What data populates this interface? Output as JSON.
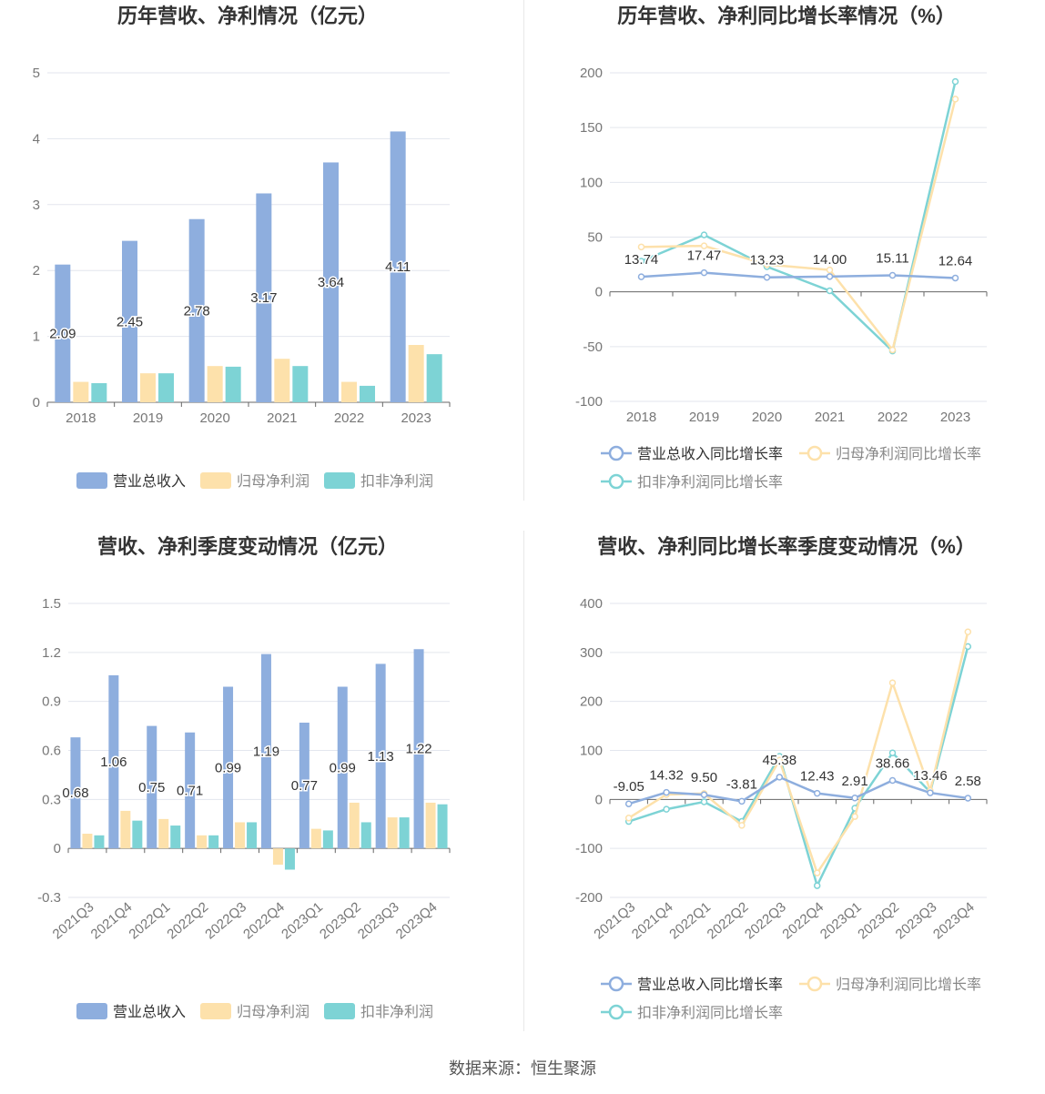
{
  "footer": "数据来源：恒生聚源",
  "colors": {
    "revenue": "#8eaede",
    "parent_profit": "#fde1ab",
    "deducted_profit": "#7dd3d5"
  },
  "chart_data": [
    {
      "type": "bar",
      "title": "历年营收、净利情况（亿元）",
      "categories": [
        "2018",
        "2019",
        "2020",
        "2021",
        "2022",
        "2023"
      ],
      "ylim": [
        0,
        5
      ],
      "yticks": [
        "0",
        "1",
        "2",
        "3",
        "4",
        "5"
      ],
      "yticks_values": [
        0,
        1,
        2,
        3,
        4,
        5
      ],
      "legend": "bottom",
      "series": [
        {
          "name": "营业总收入",
          "values": [
            2.09,
            2.45,
            2.78,
            3.17,
            3.64,
            4.11
          ],
          "labels": [
            "2.09",
            "2.45",
            "2.78",
            "3.17",
            "3.64",
            "4.11"
          ]
        },
        {
          "name": "归母净利润",
          "values": [
            0.31,
            0.44,
            0.55,
            0.66,
            0.31,
            0.87
          ]
        },
        {
          "name": "扣非净利润",
          "values": [
            0.29,
            0.44,
            0.54,
            0.55,
            0.25,
            0.73
          ]
        }
      ]
    },
    {
      "type": "line",
      "title": "历年营收、净利同比增长率情况（%）",
      "categories": [
        "2018",
        "2019",
        "2020",
        "2021",
        "2022",
        "2023"
      ],
      "ylim": [
        -100,
        200
      ],
      "yticks": [
        "-100",
        "-50",
        "0",
        "50",
        "100",
        "150",
        "200"
      ],
      "yticks_values": [
        -100,
        -50,
        0,
        50,
        100,
        150,
        200
      ],
      "legend": "bottom",
      "series": [
        {
          "name": "营业总收入同比增长率",
          "values": [
            13.74,
            17.47,
            13.23,
            14.0,
            15.11,
            12.64
          ],
          "labels": [
            "13.74",
            "17.47",
            "13.23",
            "14.00",
            "15.11",
            "12.64"
          ]
        },
        {
          "name": "归母净利润同比增长率",
          "values": [
            41,
            42,
            25,
            20,
            -53,
            176
          ]
        },
        {
          "name": "扣非净利润同比增长率",
          "values": [
            28,
            52,
            23,
            1,
            -54,
            192
          ]
        }
      ]
    },
    {
      "type": "bar",
      "title": "营收、净利季度变动情况（亿元）",
      "categories": [
        "2021Q3",
        "2021Q4",
        "2022Q1",
        "2022Q2",
        "2022Q3",
        "2022Q4",
        "2023Q1",
        "2023Q2",
        "2023Q3",
        "2023Q4"
      ],
      "ylim": [
        -0.3,
        1.5
      ],
      "yticks": [
        "-0.3",
        "0",
        "0.3",
        "0.6",
        "0.9",
        "1.2",
        "1.5"
      ],
      "yticks_values": [
        -0.3,
        0,
        0.3,
        0.6,
        0.9,
        1.2,
        1.5
      ],
      "legend": "bottom",
      "series": [
        {
          "name": "营业总收入",
          "values": [
            0.68,
            1.06,
            0.75,
            0.71,
            0.99,
            1.19,
            0.77,
            0.99,
            1.13,
            1.22
          ],
          "labels": [
            "0.68",
            "1.06",
            "0.75",
            "0.71",
            "0.99",
            "1.19",
            "0.77",
            "0.99",
            "1.13",
            "1.22"
          ]
        },
        {
          "name": "归母净利润",
          "values": [
            0.09,
            0.23,
            0.18,
            0.08,
            0.16,
            -0.1,
            0.12,
            0.28,
            0.19,
            0.28
          ]
        },
        {
          "name": "扣非净利润",
          "values": [
            0.08,
            0.17,
            0.14,
            0.08,
            0.16,
            -0.13,
            0.11,
            0.16,
            0.19,
            0.27
          ]
        }
      ]
    },
    {
      "type": "line",
      "title": "营收、净利同比增长率季度变动情况（%）",
      "categories": [
        "2021Q3",
        "2021Q4",
        "2022Q1",
        "2022Q2",
        "2022Q3",
        "2022Q4",
        "2023Q1",
        "2023Q2",
        "2023Q3",
        "2023Q4"
      ],
      "ylim": [
        -200,
        400
      ],
      "yticks": [
        "-200",
        "-100",
        "0",
        "100",
        "200",
        "300",
        "400"
      ],
      "yticks_values": [
        -200,
        -100,
        0,
        100,
        200,
        300,
        400
      ],
      "legend": "bottom",
      "series": [
        {
          "name": "营业总收入同比增长率",
          "values": [
            -9.05,
            14.32,
            9.5,
            -3.81,
            45.38,
            12.43,
            2.91,
            38.66,
            13.46,
            2.58
          ],
          "labels": [
            "-9.05",
            "14.32",
            "9.50",
            "-3.81",
            "45.38",
            "12.43",
            "2.91",
            "38.66",
            "13.46",
            "2.58"
          ]
        },
        {
          "name": "归母净利润同比增长率",
          "values": [
            -38,
            10,
            12,
            -53,
            80,
            -150,
            -35,
            238,
            18,
            342
          ]
        },
        {
          "name": "扣非净利润同比增长率",
          "values": [
            -45,
            -20,
            -5,
            -45,
            88,
            -176,
            -18,
            95,
            15,
            312
          ]
        }
      ]
    }
  ]
}
